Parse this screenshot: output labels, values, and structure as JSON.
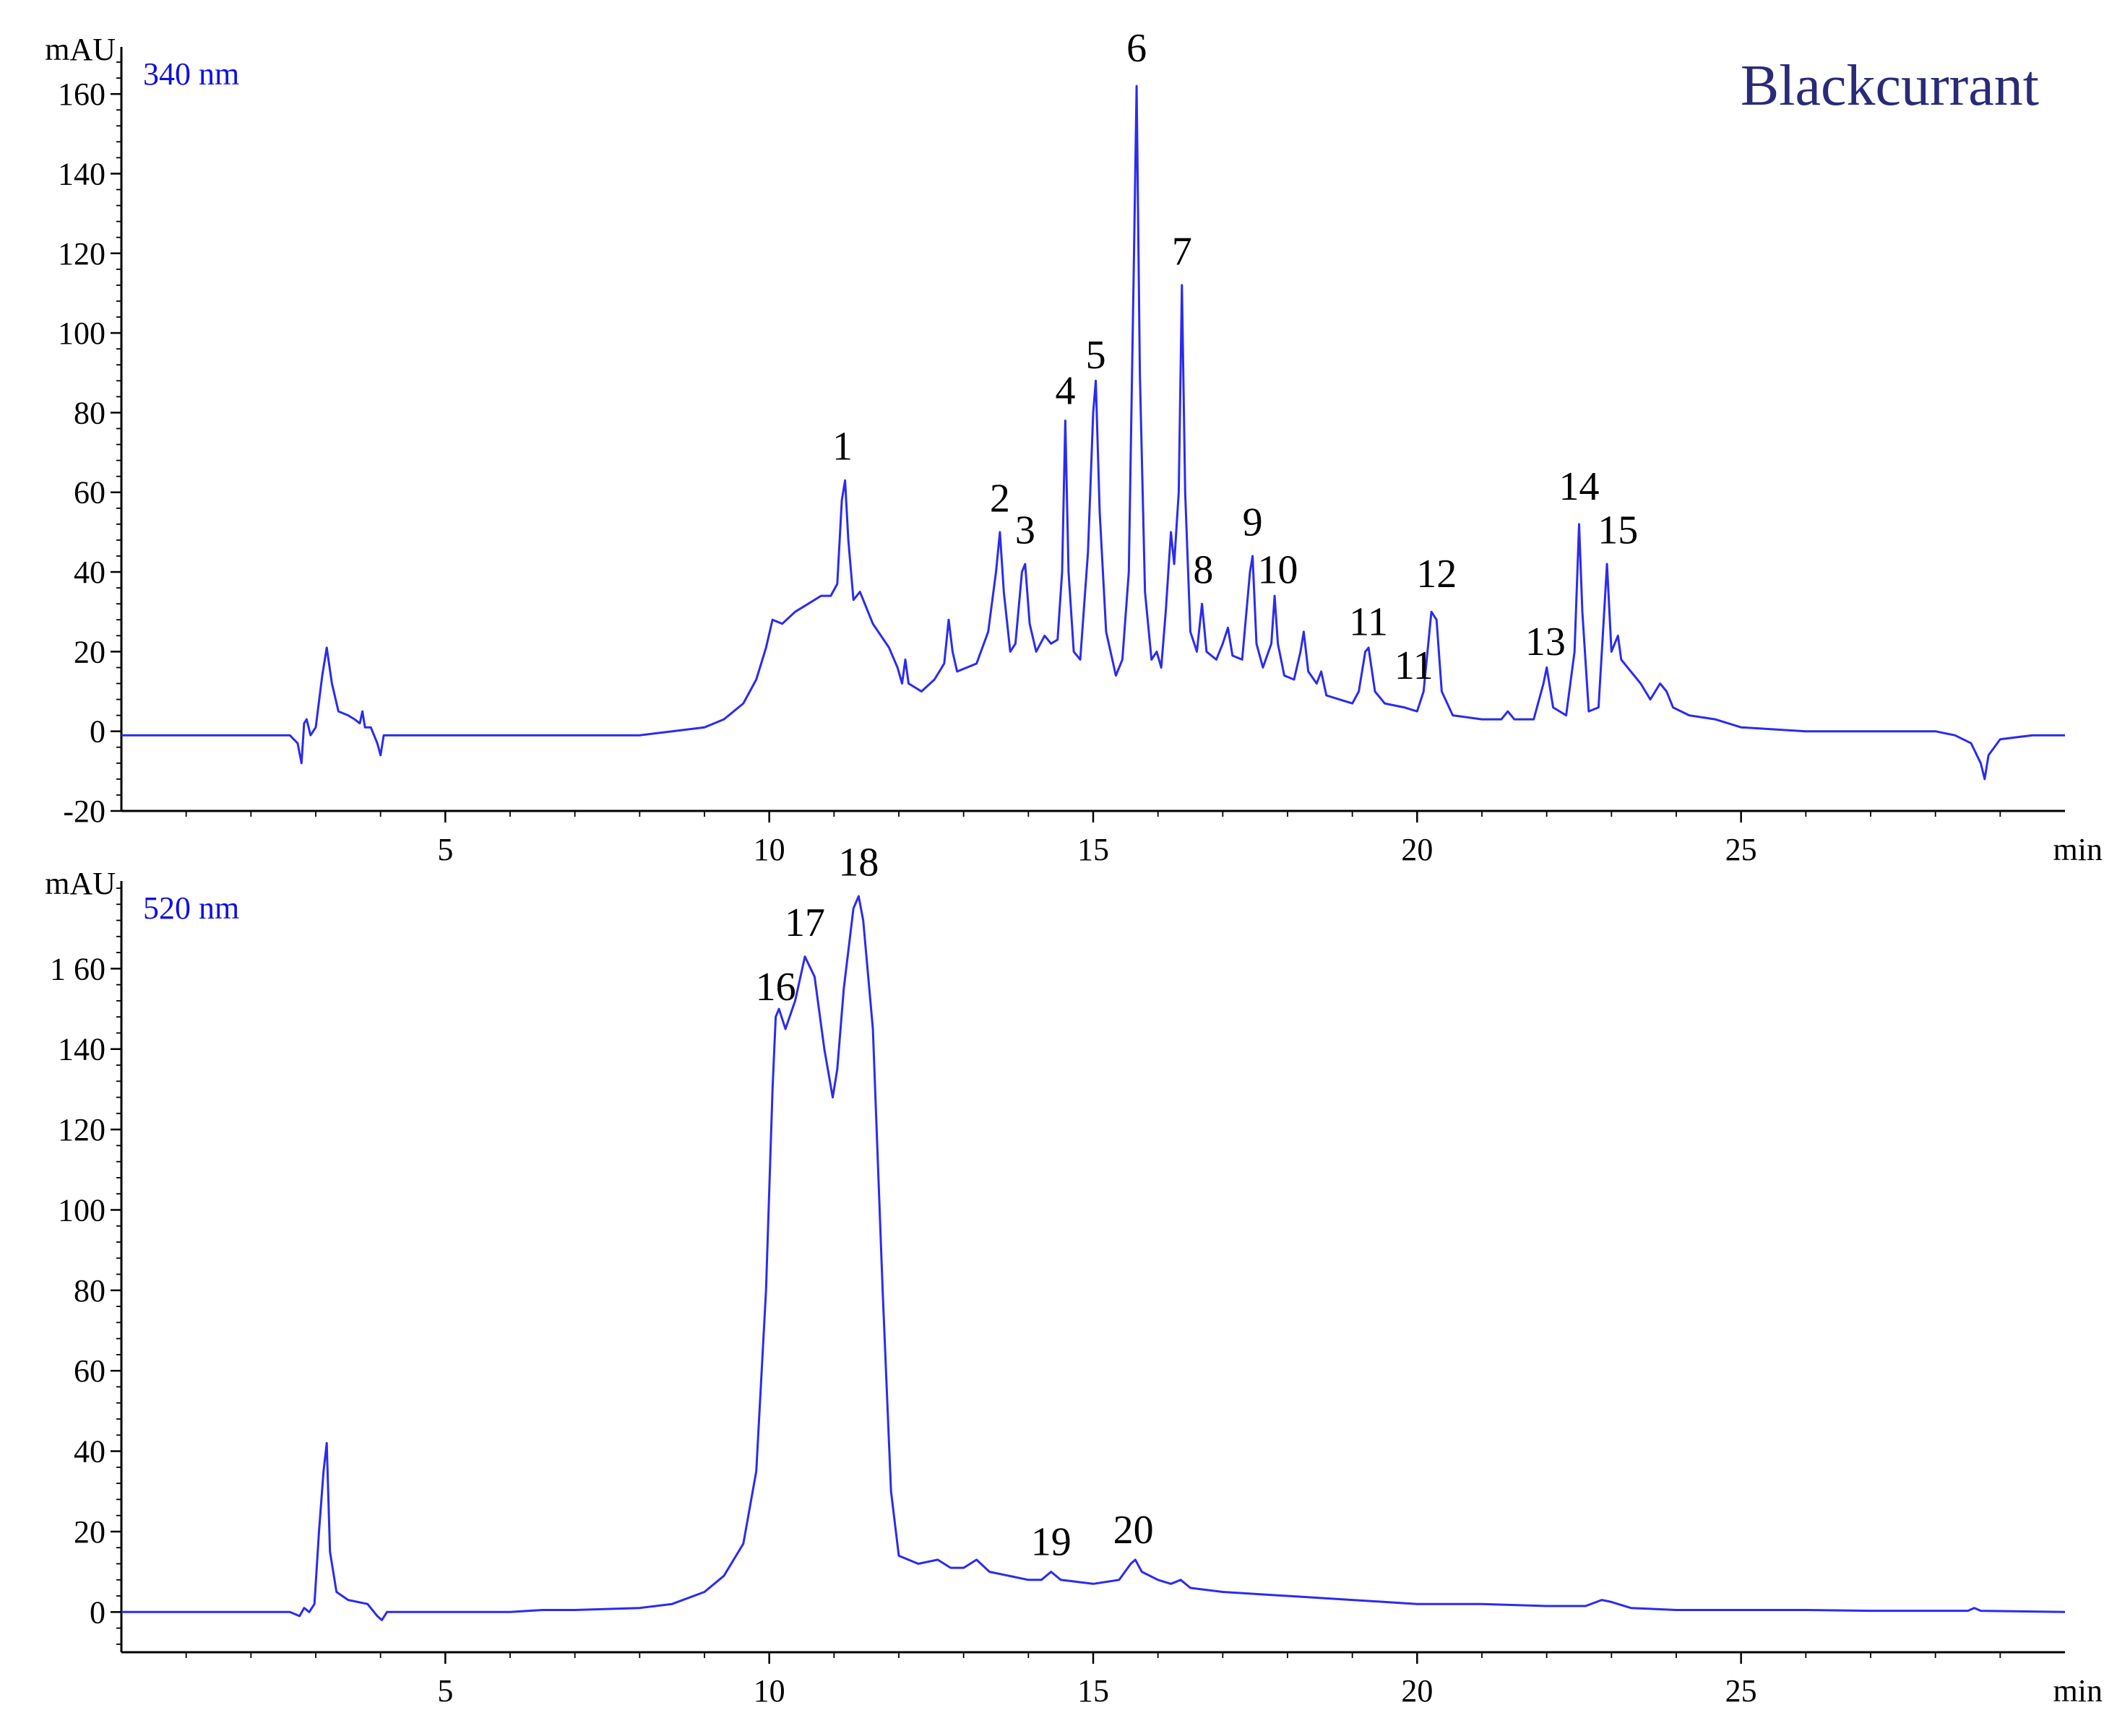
{
  "title": "Blackcurrant",
  "colors": {
    "trace": "#2b2bf0",
    "title": "#2a2a78",
    "wavelength_label": "#1010e0"
  },
  "chart_data": [
    {
      "type": "line",
      "wavelength_label": "340 nm",
      "ylabel": "mAU",
      "xlabel": "min",
      "xlim": [
        0,
        30
      ],
      "ylim": [
        -20,
        170
      ],
      "xticks": [
        5,
        10,
        15,
        20,
        25
      ],
      "yticks": [
        -20,
        0,
        20,
        40,
        60,
        80,
        100,
        120,
        140,
        160
      ],
      "ytick_labels": [
        "-20",
        "0",
        "20",
        "40",
        "60",
        "80",
        "100",
        "120",
        "140",
        "160"
      ],
      "baseline": [
        [
          0,
          -1
        ],
        [
          2.6,
          -1
        ],
        [
          2.72,
          -3
        ],
        [
          2.78,
          -8
        ],
        [
          2.82,
          2
        ],
        [
          2.86,
          3
        ],
        [
          2.92,
          -1
        ],
        [
          3.0,
          1
        ],
        [
          3.1,
          14
        ],
        [
          3.17,
          21
        ],
        [
          3.25,
          12
        ],
        [
          3.35,
          5
        ],
        [
          3.5,
          4
        ],
        [
          3.6,
          3
        ],
        [
          3.68,
          2
        ],
        [
          3.72,
          5
        ],
        [
          3.76,
          1
        ],
        [
          3.85,
          1
        ],
        [
          3.95,
          -3
        ],
        [
          4.0,
          -6
        ],
        [
          4.05,
          -1
        ],
        [
          4.3,
          -1
        ],
        [
          6.5,
          -1
        ],
        [
          8.0,
          -1
        ],
        [
          8.5,
          0
        ],
        [
          9.0,
          1
        ],
        [
          9.3,
          3
        ],
        [
          9.6,
          7
        ],
        [
          9.8,
          13
        ],
        [
          9.95,
          21
        ],
        [
          10.05,
          28
        ],
        [
          10.2,
          27
        ],
        [
          10.4,
          30
        ],
        [
          10.6,
          32
        ],
        [
          10.8,
          34
        ],
        [
          10.95,
          34
        ],
        [
          11.05,
          37
        ],
        [
          11.12,
          58
        ],
        [
          11.17,
          63
        ],
        [
          11.22,
          48
        ],
        [
          11.3,
          33
        ],
        [
          11.4,
          35
        ],
        [
          11.6,
          27
        ],
        [
          11.85,
          21
        ],
        [
          11.98,
          16
        ],
        [
          12.05,
          12
        ],
        [
          12.1,
          18
        ],
        [
          12.15,
          12
        ],
        [
          12.35,
          10
        ],
        [
          12.55,
          13
        ],
        [
          12.7,
          17
        ],
        [
          12.77,
          28
        ],
        [
          12.83,
          20
        ],
        [
          12.9,
          15
        ],
        [
          13.2,
          17
        ],
        [
          13.38,
          25
        ],
        [
          13.5,
          40
        ],
        [
          13.56,
          50
        ],
        [
          13.62,
          35
        ],
        [
          13.72,
          20
        ],
        [
          13.8,
          22
        ],
        [
          13.9,
          40
        ],
        [
          13.95,
          42
        ],
        [
          14.02,
          27
        ],
        [
          14.12,
          20
        ],
        [
          14.25,
          24
        ],
        [
          14.35,
          22
        ],
        [
          14.45,
          23
        ],
        [
          14.52,
          40
        ],
        [
          14.57,
          78
        ],
        [
          14.62,
          40
        ],
        [
          14.7,
          20
        ],
        [
          14.8,
          18
        ],
        [
          14.92,
          45
        ],
        [
          15.0,
          80
        ],
        [
          15.04,
          88
        ],
        [
          15.1,
          55
        ],
        [
          15.2,
          25
        ],
        [
          15.35,
          14
        ],
        [
          15.45,
          18
        ],
        [
          15.55,
          40
        ],
        [
          15.63,
          120
        ],
        [
          15.67,
          162
        ],
        [
          15.72,
          90
        ],
        [
          15.8,
          35
        ],
        [
          15.9,
          18
        ],
        [
          15.98,
          20
        ],
        [
          16.05,
          16
        ],
        [
          16.12,
          30
        ],
        [
          16.2,
          50
        ],
        [
          16.25,
          42
        ],
        [
          16.32,
          60
        ],
        [
          16.37,
          112
        ],
        [
          16.42,
          60
        ],
        [
          16.5,
          25
        ],
        [
          16.6,
          20
        ],
        [
          16.68,
          32
        ],
        [
          16.75,
          20
        ],
        [
          16.9,
          18
        ],
        [
          17.0,
          22
        ],
        [
          17.08,
          26
        ],
        [
          17.15,
          19
        ],
        [
          17.3,
          18
        ],
        [
          17.42,
          40
        ],
        [
          17.46,
          44
        ],
        [
          17.52,
          22
        ],
        [
          17.62,
          16
        ],
        [
          17.75,
          22
        ],
        [
          17.8,
          34
        ],
        [
          17.85,
          22
        ],
        [
          17.95,
          14
        ],
        [
          18.1,
          13
        ],
        [
          18.2,
          20
        ],
        [
          18.25,
          25
        ],
        [
          18.32,
          15
        ],
        [
          18.45,
          12
        ],
        [
          18.52,
          15
        ],
        [
          18.6,
          9
        ],
        [
          18.8,
          8
        ],
        [
          19.0,
          7
        ],
        [
          19.1,
          10
        ],
        [
          19.2,
          20
        ],
        [
          19.25,
          21
        ],
        [
          19.35,
          10
        ],
        [
          19.5,
          7
        ],
        [
          19.8,
          6
        ],
        [
          20.0,
          5
        ],
        [
          20.1,
          10
        ],
        [
          20.22,
          30
        ],
        [
          20.3,
          28
        ],
        [
          20.38,
          10
        ],
        [
          20.55,
          4
        ],
        [
          21.0,
          3
        ],
        [
          21.3,
          3
        ],
        [
          21.4,
          5
        ],
        [
          21.5,
          3
        ],
        [
          21.8,
          3
        ],
        [
          21.95,
          12
        ],
        [
          22.0,
          16
        ],
        [
          22.1,
          6
        ],
        [
          22.3,
          4
        ],
        [
          22.43,
          20
        ],
        [
          22.5,
          52
        ],
        [
          22.55,
          30
        ],
        [
          22.65,
          5
        ],
        [
          22.8,
          6
        ],
        [
          22.88,
          28
        ],
        [
          22.93,
          42
        ],
        [
          23.0,
          20
        ],
        [
          23.1,
          24
        ],
        [
          23.15,
          18
        ],
        [
          23.3,
          15
        ],
        [
          23.45,
          12
        ],
        [
          23.6,
          8
        ],
        [
          23.75,
          12
        ],
        [
          23.85,
          10
        ],
        [
          23.95,
          6
        ],
        [
          24.2,
          4
        ],
        [
          24.6,
          3
        ],
        [
          25.0,
          1
        ],
        [
          26.0,
          0
        ],
        [
          27.0,
          0
        ],
        [
          28.0,
          0
        ],
        [
          28.3,
          -1
        ],
        [
          28.55,
          -3
        ],
        [
          28.7,
          -8
        ],
        [
          28.76,
          -12
        ],
        [
          28.82,
          -6
        ],
        [
          29.0,
          -2
        ],
        [
          29.5,
          -1
        ],
        [
          30.0,
          -1
        ]
      ],
      "peak_labels": [
        {
          "label": "1",
          "x": 11.13,
          "y": 66
        },
        {
          "label": "2",
          "x": 13.56,
          "y": 53
        },
        {
          "label": "3",
          "x": 13.95,
          "y": 45
        },
        {
          "label": "4",
          "x": 14.57,
          "y": 80
        },
        {
          "label": "5",
          "x": 15.04,
          "y": 89
        },
        {
          "label": "6",
          "x": 15.67,
          "y": 166
        },
        {
          "label": "7",
          "x": 16.37,
          "y": 115
        },
        {
          "label": "8",
          "x": 16.7,
          "y": 35
        },
        {
          "label": "9",
          "x": 17.46,
          "y": 47
        },
        {
          "label": "10",
          "x": 17.85,
          "y": 35
        },
        {
          "label": "11",
          "x": 19.25,
          "y": 22
        },
        {
          "label": "11",
          "x": 19.95,
          "y": 11
        },
        {
          "label": "12",
          "x": 20.3,
          "y": 34
        },
        {
          "label": "13",
          "x": 21.98,
          "y": 17
        },
        {
          "label": "14",
          "x": 22.5,
          "y": 56
        },
        {
          "label": "15",
          "x": 23.1,
          "y": 45
        }
      ]
    },
    {
      "type": "line",
      "wavelength_label": "520 nm",
      "ylabel": "mAU",
      "xlabel": "min",
      "xlim": [
        0,
        30
      ],
      "ylim": [
        -10,
        180
      ],
      "xticks": [
        5,
        10,
        15,
        20,
        25
      ],
      "yticks": [
        0,
        20,
        40,
        60,
        80,
        100,
        120,
        140,
        160
      ],
      "ytick_labels": [
        "0",
        "20",
        "40",
        "60",
        "80",
        "100",
        "120",
        "140",
        "1 60"
      ],
      "baseline": [
        [
          0,
          0
        ],
        [
          2.6,
          0
        ],
        [
          2.75,
          -1
        ],
        [
          2.82,
          1
        ],
        [
          2.9,
          0
        ],
        [
          2.98,
          2
        ],
        [
          3.05,
          20
        ],
        [
          3.12,
          35
        ],
        [
          3.17,
          42
        ],
        [
          3.22,
          15
        ],
        [
          3.32,
          5
        ],
        [
          3.5,
          3
        ],
        [
          3.8,
          2
        ],
        [
          3.95,
          -1
        ],
        [
          4.02,
          -2
        ],
        [
          4.1,
          0
        ],
        [
          4.3,
          0
        ],
        [
          6.0,
          0
        ],
        [
          6.5,
          0.5
        ],
        [
          7.0,
          0.5
        ],
        [
          8.0,
          1
        ],
        [
          8.5,
          2
        ],
        [
          9.0,
          5
        ],
        [
          9.3,
          9
        ],
        [
          9.6,
          17
        ],
        [
          9.8,
          35
        ],
        [
          9.95,
          80
        ],
        [
          10.05,
          130
        ],
        [
          10.1,
          148
        ],
        [
          10.15,
          150
        ],
        [
          10.25,
          145
        ],
        [
          10.4,
          152
        ],
        [
          10.55,
          163
        ],
        [
          10.7,
          158
        ],
        [
          10.85,
          140
        ],
        [
          10.98,
          128
        ],
        [
          11.05,
          135
        ],
        [
          11.15,
          155
        ],
        [
          11.3,
          175
        ],
        [
          11.38,
          178
        ],
        [
          11.45,
          172
        ],
        [
          11.6,
          145
        ],
        [
          11.75,
          80
        ],
        [
          11.88,
          30
        ],
        [
          12.0,
          14
        ],
        [
          12.3,
          12
        ],
        [
          12.6,
          13
        ],
        [
          12.8,
          11
        ],
        [
          13.0,
          11
        ],
        [
          13.2,
          13
        ],
        [
          13.4,
          10
        ],
        [
          13.7,
          9
        ],
        [
          14.0,
          8
        ],
        [
          14.2,
          8
        ],
        [
          14.35,
          10
        ],
        [
          14.5,
          8
        ],
        [
          15.0,
          7
        ],
        [
          15.4,
          8
        ],
        [
          15.58,
          12
        ],
        [
          15.65,
          13
        ],
        [
          15.75,
          10
        ],
        [
          16.0,
          8
        ],
        [
          16.2,
          7
        ],
        [
          16.35,
          8
        ],
        [
          16.5,
          6
        ],
        [
          17.0,
          5
        ],
        [
          18.0,
          4
        ],
        [
          19.0,
          3
        ],
        [
          20.0,
          2
        ],
        [
          21.0,
          2
        ],
        [
          22.0,
          1.5
        ],
        [
          22.6,
          1.5
        ],
        [
          22.85,
          3
        ],
        [
          23.0,
          2.5
        ],
        [
          23.3,
          1
        ],
        [
          24.0,
          0.5
        ],
        [
          25.0,
          0.5
        ],
        [
          26.0,
          0.5
        ],
        [
          27.0,
          0.3
        ],
        [
          28.5,
          0.3
        ],
        [
          28.6,
          1
        ],
        [
          28.7,
          0.3
        ],
        [
          30.0,
          0
        ]
      ],
      "peak_labels": [
        {
          "label": "16",
          "x": 10.1,
          "y": 150
        },
        {
          "label": "17",
          "x": 10.55,
          "y": 166
        },
        {
          "label": "18",
          "x": 11.38,
          "y": 181
        },
        {
          "label": "19",
          "x": 14.35,
          "y": 12
        },
        {
          "label": "20",
          "x": 15.62,
          "y": 15
        }
      ]
    }
  ]
}
